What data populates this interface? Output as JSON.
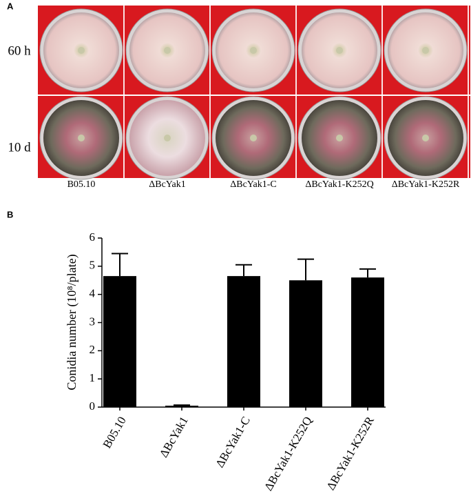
{
  "panel_a": {
    "label": "A",
    "rows": [
      "60 h",
      "10 d"
    ],
    "strains": [
      "B05.10",
      "ΔBcYak1",
      "ΔBcYak1-C",
      "ΔBcYak1-K252Q",
      "ΔBcYak1-K252R"
    ]
  },
  "chart_data": {
    "type": "bar",
    "panel_label": "B",
    "y_label": "Conidia number  (10⁸/plate)",
    "categories": [
      "B05.10",
      "ΔBcYak1",
      "ΔBcYak1-C",
      "ΔBcYak1-K252Q",
      "ΔBcYak1-K252R"
    ],
    "values": [
      4.65,
      0.05,
      4.65,
      4.5,
      4.6
    ],
    "errors": [
      0.8,
      0.02,
      0.4,
      0.75,
      0.3
    ],
    "color": "#000000",
    "ylim": [
      0,
      6
    ],
    "yticks": [
      0,
      1,
      2,
      3,
      4,
      5,
      6
    ],
    "grid": false
  }
}
